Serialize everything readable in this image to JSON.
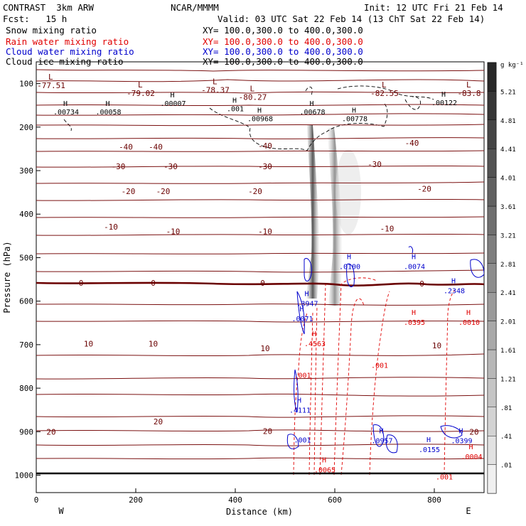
{
  "header": {
    "model": "CONTRAST  3km ARW",
    "org": "NCAR/MMMM",
    "init": "Init: 12 UTC Fri 21 Feb 14",
    "fcst": "Fcst:   15 h",
    "valid": "Valid: 03 UTC Sat 22 Feb 14 (13 ChT Sat 22 Feb 14)"
  },
  "fields": [
    {
      "name": "Snow mixing ratio",
      "xy": "XY= 100.0,300.0 to 400.0,300.0",
      "color": "#000000"
    },
    {
      "name": "Rain water mixing ratio",
      "xy": "XY= 100.0,300.0 to 400.0,300.0",
      "color": "#e00000"
    },
    {
      "name": "Cloud water mixing ratio",
      "xy": "XY= 100.0,300.0 to 400.0,300.0",
      "color": "#0000cc"
    },
    {
      "name": "Cloud ice mixing ratio",
      "xy": "XY= 100.0,300.0 to 400.0,300.0",
      "color": "#000000"
    }
  ],
  "chart_data": {
    "type": "cross-section",
    "xlabel": "Distance (km)",
    "ylabel": "Pressure (hPa)",
    "x_ticks": [
      0,
      200,
      400,
      600,
      800
    ],
    "xlim": [
      0,
      900
    ],
    "y_ticks": [
      100,
      200,
      300,
      400,
      500,
      600,
      700,
      800,
      900,
      1000
    ],
    "ylim": [
      50,
      1040
    ],
    "west_label": "W",
    "east_label": "E",
    "colorbar": {
      "unit": "g kg⁻¹",
      "levels": [
        ".01",
        ".41",
        ".81",
        "1.21",
        "1.61",
        "2.01",
        "2.41",
        "2.81",
        "3.21",
        "3.61",
        "4.01",
        "4.41",
        "4.81",
        "5.21"
      ]
    },
    "temperature_labels": [
      {
        "text": "-40",
        "x": 180,
        "p": 245
      },
      {
        "text": "-40",
        "x": 240,
        "p": 245
      },
      {
        "text": "-40",
        "x": 460,
        "p": 243
      },
      {
        "text": "-40",
        "x": 755,
        "p": 236
      },
      {
        "text": "-30",
        "x": 165,
        "p": 290
      },
      {
        "text": "-30",
        "x": 270,
        "p": 290
      },
      {
        "text": "-30",
        "x": 460,
        "p": 290
      },
      {
        "text": "-30",
        "x": 680,
        "p": 285
      },
      {
        "text": "-20",
        "x": 185,
        "p": 347
      },
      {
        "text": "-20",
        "x": 255,
        "p": 347
      },
      {
        "text": "-20",
        "x": 440,
        "p": 347
      },
      {
        "text": "-20",
        "x": 780,
        "p": 342
      },
      {
        "text": "-10",
        "x": 150,
        "p": 429
      },
      {
        "text": "-10",
        "x": 275,
        "p": 440
      },
      {
        "text": "-10",
        "x": 460,
        "p": 440
      },
      {
        "text": "-10",
        "x": 705,
        "p": 433
      },
      {
        "text": "0",
        "x": 90,
        "p": 558
      },
      {
        "text": "0",
        "x": 235,
        "p": 558
      },
      {
        "text": "0",
        "x": 455,
        "p": 558
      },
      {
        "text": "0",
        "x": 775,
        "p": 560
      },
      {
        "text": "10",
        "x": 105,
        "p": 698
      },
      {
        "text": "10",
        "x": 235,
        "p": 698
      },
      {
        "text": "10",
        "x": 460,
        "p": 708
      },
      {
        "text": "10",
        "x": 805,
        "p": 702
      },
      {
        "text": "20",
        "x": 30,
        "p": 900
      },
      {
        "text": "20",
        "x": 245,
        "p": 877
      },
      {
        "text": "20",
        "x": 465,
        "p": 899
      },
      {
        "text": "20",
        "x": 880,
        "p": 900
      }
    ],
    "low_pressure_labels": [
      {
        "text": "-77.51",
        "x": 30,
        "p": 101
      },
      {
        "text": "-79.02",
        "x": 210,
        "p": 119
      },
      {
        "text": "-78.37",
        "x": 360,
        "p": 111
      },
      {
        "text": "-80.27",
        "x": 435,
        "p": 128
      },
      {
        "text": "-82.55",
        "x": 700,
        "p": 119
      },
      {
        "text": "-83.8",
        "x": 870,
        "p": 119
      }
    ],
    "snow_max_labels": [
      {
        "text": ".00734",
        "x": 60,
        "p": 164
      },
      {
        "text": ".00058",
        "x": 145,
        "p": 164
      },
      {
        "text": ".00007",
        "x": 275,
        "p": 145
      },
      {
        "text": ".001",
        "x": 400,
        "p": 157
      },
      {
        "text": ".00968",
        "x": 450,
        "p": 180
      },
      {
        "text": ".00678",
        "x": 555,
        "p": 164
      },
      {
        "text": ".00778",
        "x": 640,
        "p": 180
      },
      {
        "text": ".00122",
        "x": 820,
        "p": 143
      }
    ],
    "rain_labels": [
      {
        "text": ".0395",
        "x": 760,
        "p": 648
      },
      {
        "text": ".0010",
        "x": 870,
        "p": 648
      },
      {
        "text": ".4563",
        "x": 560,
        "p": 697
      },
      {
        "text": ".001",
        "x": 535,
        "p": 770
      },
      {
        "text": ".001",
        "x": 690,
        "p": 747
      },
      {
        "text": ".0065",
        "x": 580,
        "p": 987
      },
      {
        "text": ".0004",
        "x": 875,
        "p": 957
      },
      {
        "text": ".001",
        "x": 820,
        "p": 1003
      }
    ],
    "cloud_water_labels": [
      {
        "text": ".0100",
        "x": 630,
        "p": 520
      },
      {
        "text": ".0074",
        "x": 760,
        "p": 520
      },
      {
        "text": ".2348",
        "x": 840,
        "p": 575
      },
      {
        "text": ".3947",
        "x": 545,
        "p": 605
      },
      {
        "text": ".0071",
        "x": 535,
        "p": 640
      },
      {
        "text": ".4111",
        "x": 530,
        "p": 850
      },
      {
        "text": ".001",
        "x": 535,
        "p": 918
      },
      {
        "text": ".0957",
        "x": 695,
        "p": 920
      },
      {
        "text": ".0155",
        "x": 790,
        "p": 940
      },
      {
        "text": ".0399",
        "x": 855,
        "p": 920
      }
    ]
  }
}
